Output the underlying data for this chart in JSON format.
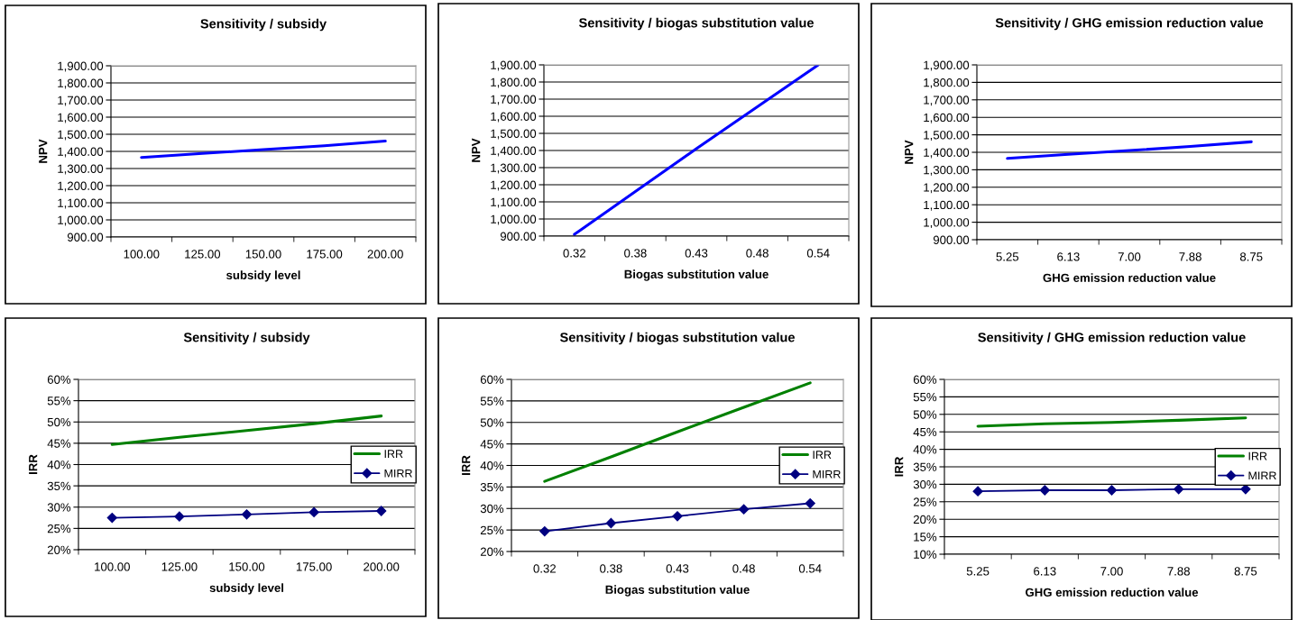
{
  "chart_data": [
    {
      "type": "line",
      "title": "Sensitivity / subsidy",
      "xlabel": "subsidy level",
      "ylabel": "NPV",
      "categories": [
        "100.00",
        "125.00",
        "150.00",
        "175.00",
        "200.00"
      ],
      "series": [
        {
          "color": "#0000ff",
          "values": [
            1365,
            1388,
            1410,
            1433,
            1460
          ]
        }
      ],
      "ylim": [
        900,
        1900
      ],
      "yticks": [
        {
          "value": 900,
          "label": "900.00"
        },
        {
          "value": 1000,
          "label": "1,000.00"
        },
        {
          "value": 1100,
          "label": "1,100.00"
        },
        {
          "value": 1200,
          "label": "1,200.00"
        },
        {
          "value": 1300,
          "label": "1,300.00"
        },
        {
          "value": 1400,
          "label": "1,400.00"
        },
        {
          "value": 1500,
          "label": "1,500.00"
        },
        {
          "value": 1600,
          "label": "1,600.00"
        },
        {
          "value": 1700,
          "label": "1,700.00"
        },
        {
          "value": 1800,
          "label": "1,800.00"
        },
        {
          "value": 1900,
          "label": "1,900.00"
        }
      ],
      "grid": "y"
    },
    {
      "type": "line",
      "title": "Sensitivity / biogas substitution value",
      "xlabel": "Biogas substitution value",
      "ylabel": "NPV",
      "categories": [
        "0.32",
        "0.38",
        "0.43",
        "0.48",
        "0.54"
      ],
      "series": [
        {
          "color": "#0000ff",
          "values": [
            910,
            1160,
            1410,
            1655,
            1900
          ]
        }
      ],
      "ylim": [
        900,
        1900
      ],
      "yticks": [
        {
          "value": 900,
          "label": "900.00"
        },
        {
          "value": 1000,
          "label": "1,000.00"
        },
        {
          "value": 1100,
          "label": "1,100.00"
        },
        {
          "value": 1200,
          "label": "1,200.00"
        },
        {
          "value": 1300,
          "label": "1,300.00"
        },
        {
          "value": 1400,
          "label": "1,400.00"
        },
        {
          "value": 1500,
          "label": "1,500.00"
        },
        {
          "value": 1600,
          "label": "1,600.00"
        },
        {
          "value": 1700,
          "label": "1,700.00"
        },
        {
          "value": 1800,
          "label": "1,800.00"
        },
        {
          "value": 1900,
          "label": "1,900.00"
        }
      ],
      "grid": "y"
    },
    {
      "type": "line",
      "title": "Sensitivity / GHG emission reduction value",
      "xlabel": "GHG emission reduction value",
      "ylabel": "NPV",
      "categories": [
        "5.25",
        "6.13",
        "7.00",
        "7.88",
        "8.75"
      ],
      "series": [
        {
          "color": "#0000ff",
          "values": [
            1365,
            1388,
            1410,
            1433,
            1460
          ]
        }
      ],
      "ylim": [
        900,
        1900
      ],
      "yticks": [
        {
          "value": 900,
          "label": "900.00"
        },
        {
          "value": 1000,
          "label": "1,000.00"
        },
        {
          "value": 1100,
          "label": "1,100.00"
        },
        {
          "value": 1200,
          "label": "1,200.00"
        },
        {
          "value": 1300,
          "label": "1,300.00"
        },
        {
          "value": 1400,
          "label": "1,400.00"
        },
        {
          "value": 1500,
          "label": "1,500.00"
        },
        {
          "value": 1600,
          "label": "1,600.00"
        },
        {
          "value": 1700,
          "label": "1,700.00"
        },
        {
          "value": 1800,
          "label": "1,800.00"
        },
        {
          "value": 1900,
          "label": "1,900.00"
        }
      ],
      "grid": "y"
    },
    {
      "type": "line",
      "title": "Sensitivity / subsidy",
      "xlabel": "subsidy level",
      "ylabel": "IRR",
      "categories": [
        "100.00",
        "125.00",
        "150.00",
        "175.00",
        "200.00"
      ],
      "series": [
        {
          "name": "IRR",
          "color": "#008000",
          "values": [
            44.7,
            46.4,
            48.0,
            49.6,
            51.4
          ]
        },
        {
          "name": "MIRR",
          "color": "#000080",
          "marker": "diamond",
          "values": [
            27.5,
            27.8,
            28.3,
            28.8,
            29.1
          ]
        }
      ],
      "ylim": [
        20,
        60
      ],
      "yticks": [
        {
          "value": 20,
          "label": "20%"
        },
        {
          "value": 25,
          "label": "25%"
        },
        {
          "value": 30,
          "label": "30%"
        },
        {
          "value": 35,
          "label": "35%"
        },
        {
          "value": 40,
          "label": "40%"
        },
        {
          "value": 45,
          "label": "45%"
        },
        {
          "value": 50,
          "label": "50%"
        },
        {
          "value": 55,
          "label": "55%"
        },
        {
          "value": 60,
          "label": "60%"
        }
      ],
      "grid": "y",
      "legend": "right"
    },
    {
      "type": "line",
      "title": "Sensitivity / biogas substitution value",
      "xlabel": "Biogas substitution value",
      "ylabel": "IRR",
      "categories": [
        "0.32",
        "0.38",
        "0.43",
        "0.48",
        "0.54"
      ],
      "series": [
        {
          "name": "IRR",
          "color": "#008000",
          "values": [
            36.3,
            42.0,
            47.8,
            53.5,
            59.2
          ]
        },
        {
          "name": "MIRR",
          "color": "#000080",
          "marker": "diamond",
          "values": [
            24.7,
            26.6,
            28.2,
            29.8,
            31.2
          ]
        }
      ],
      "ylim": [
        20,
        60
      ],
      "yticks": [
        {
          "value": 20,
          "label": "20%"
        },
        {
          "value": 25,
          "label": "25%"
        },
        {
          "value": 30,
          "label": "30%"
        },
        {
          "value": 35,
          "label": "35%"
        },
        {
          "value": 40,
          "label": "40%"
        },
        {
          "value": 45,
          "label": "45%"
        },
        {
          "value": 50,
          "label": "50%"
        },
        {
          "value": 55,
          "label": "55%"
        },
        {
          "value": 60,
          "label": "60%"
        }
      ],
      "grid": "y",
      "legend": "right"
    },
    {
      "type": "line",
      "title": "Sensitivity / GHG emission reduction value",
      "xlabel": "GHG emission reduction value",
      "ylabel": "IRR",
      "categories": [
        "5.25",
        "6.13",
        "7.00",
        "7.88",
        "8.75"
      ],
      "series": [
        {
          "name": "IRR",
          "color": "#008000",
          "values": [
            46.6,
            47.3,
            47.7,
            48.3,
            49.0
          ]
        },
        {
          "name": "MIRR",
          "color": "#000080",
          "marker": "diamond",
          "values": [
            28.0,
            28.3,
            28.3,
            28.6,
            28.6
          ]
        }
      ],
      "ylim": [
        10,
        60
      ],
      "yticks": [
        {
          "value": 10,
          "label": "10%"
        },
        {
          "value": 15,
          "label": "15%"
        },
        {
          "value": 20,
          "label": "20%"
        },
        {
          "value": 25,
          "label": "25%"
        },
        {
          "value": 30,
          "label": "30%"
        },
        {
          "value": 35,
          "label": "35%"
        },
        {
          "value": 40,
          "label": "40%"
        },
        {
          "value": 45,
          "label": "45%"
        },
        {
          "value": 50,
          "label": "50%"
        },
        {
          "value": 55,
          "label": "55%"
        },
        {
          "value": 60,
          "label": "60%"
        }
      ],
      "grid": "y",
      "legend": "right"
    }
  ]
}
